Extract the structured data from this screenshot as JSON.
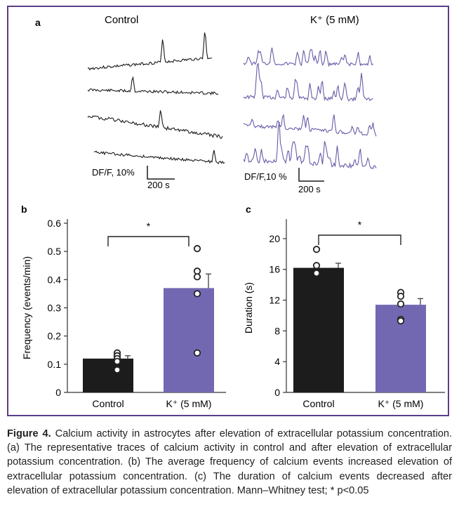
{
  "panel_a": {
    "letter": "a",
    "control_title": "Control",
    "k_title": "K⁺ (5 mM)",
    "control_scale_y": "DF/F, 10%",
    "control_scale_x": "200 s",
    "k_scale_y": "DF/F,10 %",
    "k_scale_x": "200 s",
    "control_color": "#1a1a1a",
    "k_color": "#6a5aa8"
  },
  "chart_data": [
    {
      "type": "bar",
      "letter": "b",
      "categories": [
        "Control",
        "K⁺ (5 mM)"
      ],
      "values": [
        0.12,
        0.37
      ],
      "errors": [
        0.01,
        0.05
      ],
      "points": [
        [
          0.14,
          0.13,
          0.12,
          0.11,
          0.08
        ],
        [
          0.51,
          0.43,
          0.41,
          0.35,
          0.14
        ]
      ],
      "colors": [
        "#1c1c1c",
        "#7268b2"
      ],
      "title": "",
      "xlabel": "",
      "ylabel": "Frequency (events/min)",
      "ylim": [
        0,
        0.6
      ],
      "yticks": [
        0,
        0.1,
        0.2,
        0.3,
        0.4,
        0.5,
        0.6
      ],
      "ytick_labels": [
        "0",
        "0.1",
        "0.2",
        "0.3",
        "0.4",
        "0.5",
        "0.6"
      ],
      "significance": "*"
    },
    {
      "type": "bar",
      "letter": "c",
      "categories": [
        "Control",
        "K⁺ (5 mM)"
      ],
      "values": [
        16.2,
        11.4
      ],
      "errors": [
        0.6,
        0.8
      ],
      "points": [
        [
          18.6,
          16.5,
          15.5
        ],
        [
          13.0,
          12.5,
          11.5,
          9.5,
          9.3
        ]
      ],
      "colors": [
        "#1c1c1c",
        "#7268b2"
      ],
      "title": "",
      "xlabel": "",
      "ylabel": "Duration (s)",
      "ylim": [
        0,
        22
      ],
      "yticks": [
        0,
        4,
        8,
        12,
        16,
        20
      ],
      "ytick_labels": [
        "0",
        "4",
        "8",
        "12",
        "16",
        "20"
      ],
      "significance": "*"
    }
  ],
  "caption": {
    "label": "Figure 4.",
    "text": " Calcium activity in astrocytes after elevation of extracellular potassium concentration. (a) The representative traces of calcium activity in control and after elevation of extracellular potassium concentration. (b) The average frequency of calcium events increased elevation of extracellular potassium concentration. (c) The duration of calcium events decreased after elevation of extracellular potassium concentration. Mann–Whitney test; * p<0.05"
  }
}
